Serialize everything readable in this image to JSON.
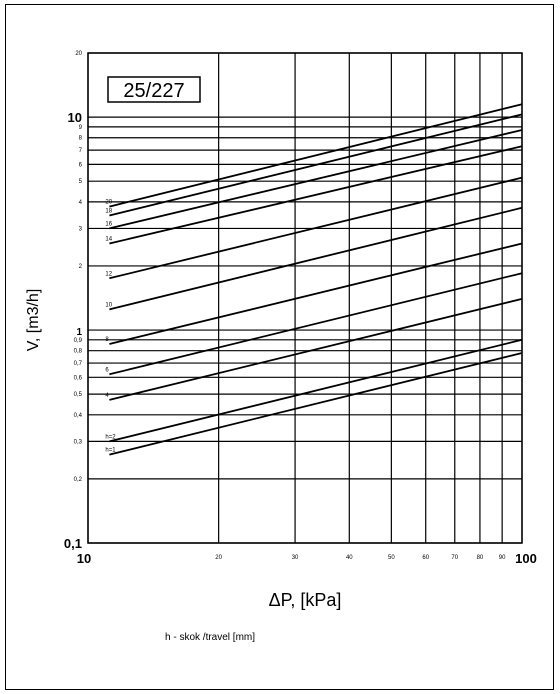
{
  "chart_data": {
    "type": "line",
    "title": "25/227",
    "xlabel": "ΔP, [kPa]",
    "ylabel": "V, [m3/h]",
    "x_scale": "log",
    "y_scale": "log",
    "xlim": [
      10,
      100
    ],
    "ylim": [
      0.1,
      20
    ],
    "grid": true,
    "x_ticks": [
      {
        "value": 10,
        "label": "10"
      },
      {
        "value": 20,
        "label": "20"
      },
      {
        "value": 30,
        "label": "30"
      },
      {
        "value": 40,
        "label": "40"
      },
      {
        "value": 50,
        "label": "50"
      },
      {
        "value": 60,
        "label": "60"
      },
      {
        "value": 70,
        "label": "70"
      },
      {
        "value": 80,
        "label": "80"
      },
      {
        "value": 90,
        "label": "90"
      },
      {
        "value": 100,
        "label": "100"
      }
    ],
    "y_ticks": [
      {
        "value": 0.1,
        "label": "0,1"
      },
      {
        "value": 0.2,
        "label": "0,2"
      },
      {
        "value": 0.3,
        "label": "0,3"
      },
      {
        "value": 0.4,
        "label": "0,4"
      },
      {
        "value": 0.5,
        "label": "0,5"
      },
      {
        "value": 0.6,
        "label": "0,6"
      },
      {
        "value": 0.7,
        "label": "0,7"
      },
      {
        "value": 0.8,
        "label": "0,8"
      },
      {
        "value": 0.9,
        "label": "0,9"
      },
      {
        "value": 1,
        "label": "1"
      },
      {
        "value": 2,
        "label": "2"
      },
      {
        "value": 3,
        "label": "3"
      },
      {
        "value": 4,
        "label": "4"
      },
      {
        "value": 5,
        "label": "5"
      },
      {
        "value": 6,
        "label": "6"
      },
      {
        "value": 7,
        "label": "7"
      },
      {
        "value": 8,
        "label": "8"
      },
      {
        "value": 9,
        "label": "9"
      },
      {
        "value": 10,
        "label": "10"
      },
      {
        "value": 20,
        "label": "20"
      }
    ],
    "series": [
      {
        "name": "h=1",
        "x": [
          11.2,
          100
        ],
        "y": [
          0.26,
          0.78
        ]
      },
      {
        "name": "h=2",
        "x": [
          11.2,
          100
        ],
        "y": [
          0.3,
          0.9
        ]
      },
      {
        "name": "4",
        "x": [
          11.2,
          100
        ],
        "y": [
          0.47,
          1.4
        ]
      },
      {
        "name": "6",
        "x": [
          11.2,
          100
        ],
        "y": [
          0.62,
          1.85
        ]
      },
      {
        "name": "8",
        "x": [
          11.2,
          100
        ],
        "y": [
          0.86,
          2.55
        ]
      },
      {
        "name": "10",
        "x": [
          11.2,
          100
        ],
        "y": [
          1.25,
          3.75
        ]
      },
      {
        "name": "12",
        "x": [
          11.2,
          100
        ],
        "y": [
          1.75,
          5.2
        ]
      },
      {
        "name": "14",
        "x": [
          11.2,
          100
        ],
        "y": [
          2.55,
          7.3
        ]
      },
      {
        "name": "16",
        "x": [
          11.2,
          100
        ],
        "y": [
          3.0,
          8.7
        ]
      },
      {
        "name": "18",
        "x": [
          11.2,
          100
        ],
        "y": [
          3.45,
          10.3
        ]
      },
      {
        "name": "20",
        "x": [
          11.2,
          100
        ],
        "y": [
          3.8,
          11.5
        ]
      }
    ],
    "caption": "h - skok /travel [mm]"
  }
}
